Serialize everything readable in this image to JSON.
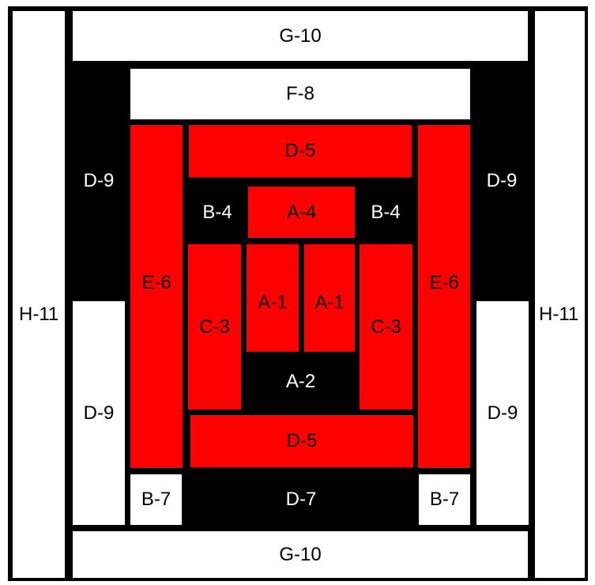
{
  "colors": {
    "red": "#ff0000",
    "black": "#000000",
    "white": "#ffffff"
  },
  "pieces": {
    "g10_top": "G-10",
    "g10_bottom": "G-10",
    "h11_left": "H-11",
    "h11_right": "H-11",
    "f8": "F-8",
    "d9_top_left": "D-9",
    "d9_top_right": "D-9",
    "d9_bottom_left": "D-9",
    "d9_bottom_right": "D-9",
    "e6_left": "E-6",
    "e6_right": "E-6",
    "d5_top": "D-5",
    "d5_bottom": "D-5",
    "b4_left": "B-4",
    "b4_right": "B-4",
    "a4": "A-4",
    "c3_left": "C-3",
    "c3_right": "C-3",
    "a1_left": "A-1",
    "a1_right": "A-1",
    "a2": "A-2",
    "b7_left": "B-7",
    "b7_right": "B-7",
    "d7": "D-7"
  }
}
